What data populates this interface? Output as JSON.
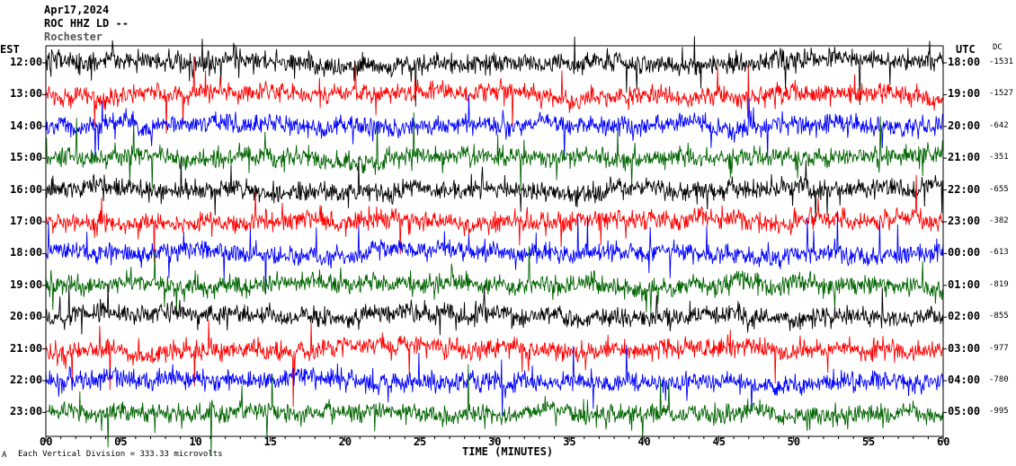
{
  "header": {
    "date": "Apr17,2024",
    "station": "ROC HHZ LD --",
    "location": "Rochester"
  },
  "left_zone": "EST",
  "right_zone": "UTC",
  "dc_header": "DC",
  "x_axis_label": "TIME (MINUTES)",
  "footer_note": "Each Vertical Division = 333.33 microvolts",
  "footer_mark": "A",
  "colors": [
    "#000000",
    "#ff0000",
    "#0000ff",
    "#006400"
  ],
  "chart_data": {
    "type": "line",
    "xlabel": "TIME (MINUTES)",
    "xlim": [
      0,
      60
    ],
    "x_ticks": [
      "00",
      "05",
      "10",
      "15",
      "20",
      "25",
      "30",
      "35",
      "40",
      "45",
      "50",
      "55",
      "60"
    ],
    "rows": [
      {
        "est": "12:00",
        "utc": "18:00",
        "dc": "-1531"
      },
      {
        "est": "13:00",
        "utc": "19:00",
        "dc": "-1527"
      },
      {
        "est": "14:00",
        "utc": "20:00",
        "dc": "-642"
      },
      {
        "est": "15:00",
        "utc": "21:00",
        "dc": "-351"
      },
      {
        "est": "16:00",
        "utc": "22:00",
        "dc": "-655"
      },
      {
        "est": "17:00",
        "utc": "23:00",
        "dc": "-382"
      },
      {
        "est": "18:00",
        "utc": "00:00",
        "dc": "-613"
      },
      {
        "est": "19:00",
        "utc": "01:00",
        "dc": "-819"
      },
      {
        "est": "20:00",
        "utc": "02:00",
        "dc": "-855"
      },
      {
        "est": "21:00",
        "utc": "03:00",
        "dc": "-977"
      },
      {
        "est": "22:00",
        "utc": "04:00",
        "dc": "-780"
      },
      {
        "est": "23:00",
        "utc": "05:00",
        "dc": "-995"
      }
    ]
  }
}
